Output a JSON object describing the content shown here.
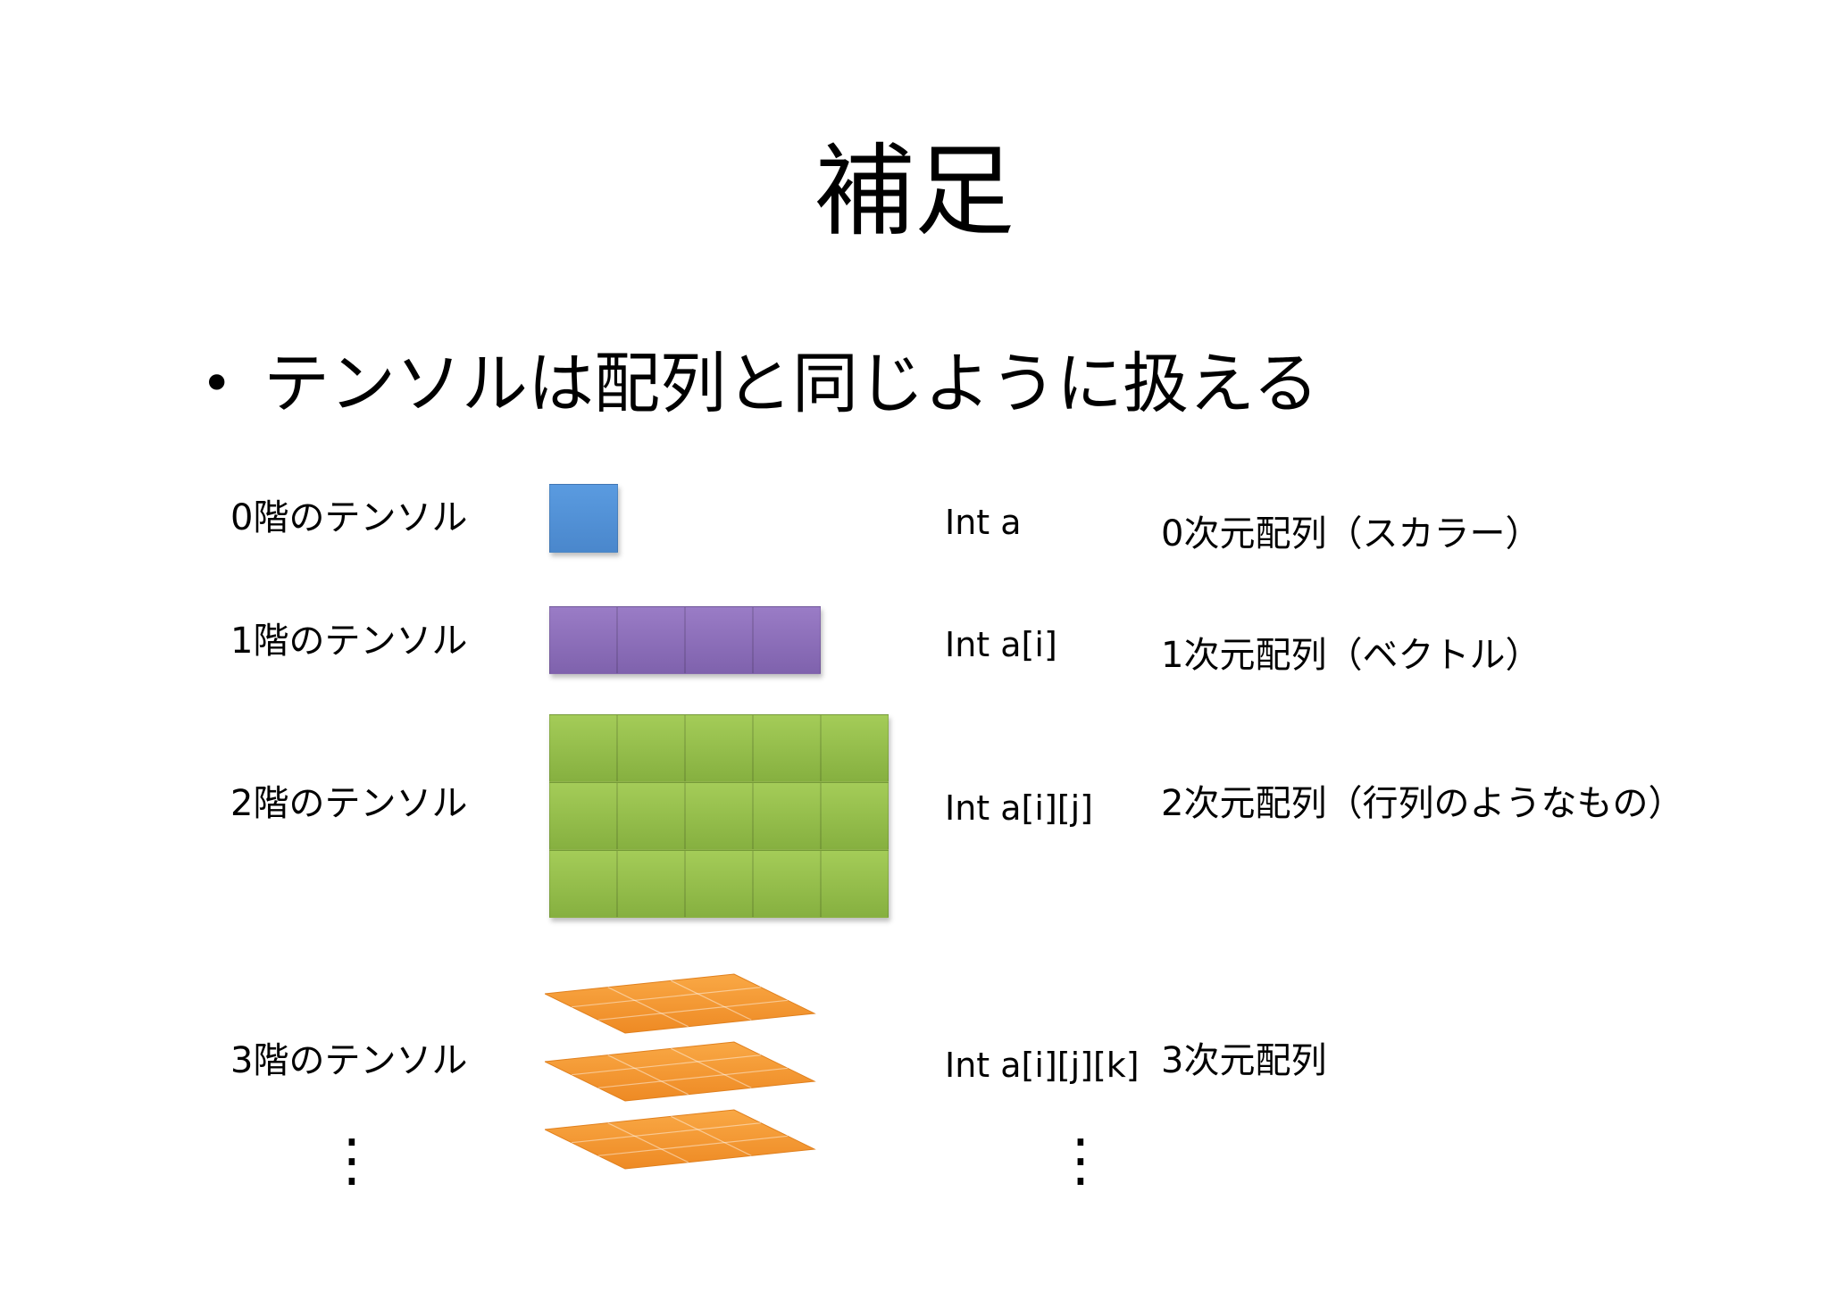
{
  "slide": {
    "title": "補足",
    "bullet": "テンソルは配列と同じように扱える"
  },
  "rows": [
    {
      "tensor_label": "0階のテンソル",
      "code": "Int a",
      "description": "0次元配列（スカラー）"
    },
    {
      "tensor_label": "1階のテンソル",
      "code": "Int a[i]",
      "description": "1次元配列（ベクトル）"
    },
    {
      "tensor_label": "2階のテンソル",
      "code": "Int a[i][j]",
      "description": "2次元配列（行列のようなもの）"
    },
    {
      "tensor_label": "3階のテンソル",
      "code": "Int a[i][j][k]",
      "description": "3次元配列"
    }
  ],
  "colors": {
    "rank0": "#4a8fd6",
    "rank1": "#8c6fba",
    "rank2": "#94bf4b",
    "rank3": "#f79a34"
  },
  "ellipsis": "⋮"
}
